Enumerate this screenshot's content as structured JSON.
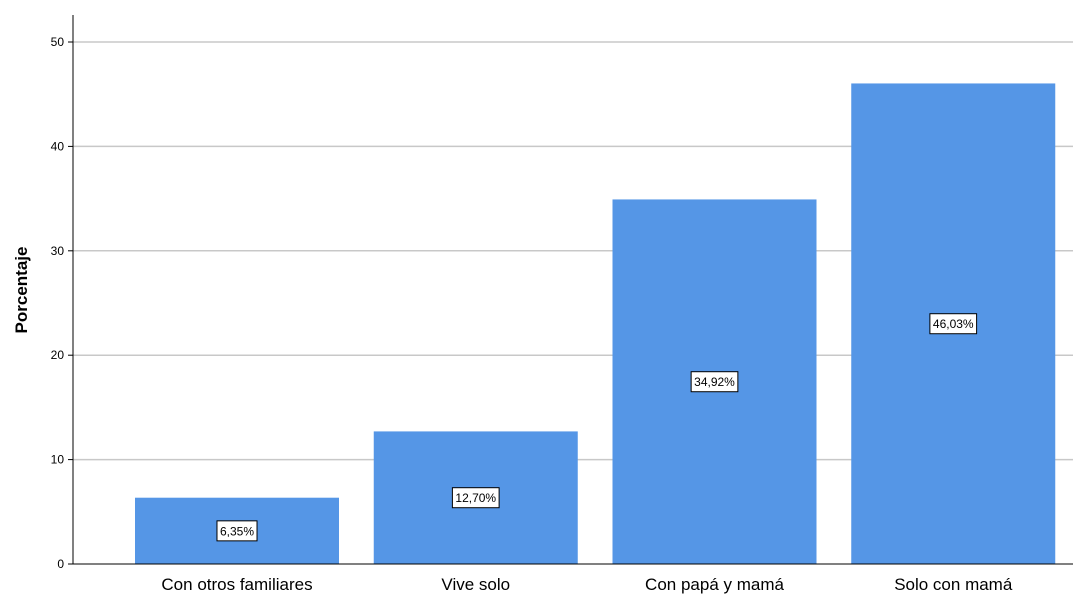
{
  "chart_data": {
    "type": "bar",
    "categories": [
      "Con otros familiares",
      "Vive solo",
      "Con papá y mamá",
      "Solo con mamá"
    ],
    "values": [
      6.35,
      12.7,
      34.92,
      46.03
    ],
    "data_labels": [
      "6,35%",
      "12,70%",
      "34,92%",
      "46,03%"
    ],
    "xlabel": "",
    "ylabel": "Porcentaje",
    "ylim": [
      0,
      50
    ],
    "yticks": [
      0,
      10,
      20,
      30,
      40,
      50
    ],
    "grid": true,
    "legend": "none",
    "colors": {
      "bar": "#5596e6",
      "grid": "#c8c8c8",
      "axis": "#000000"
    }
  }
}
